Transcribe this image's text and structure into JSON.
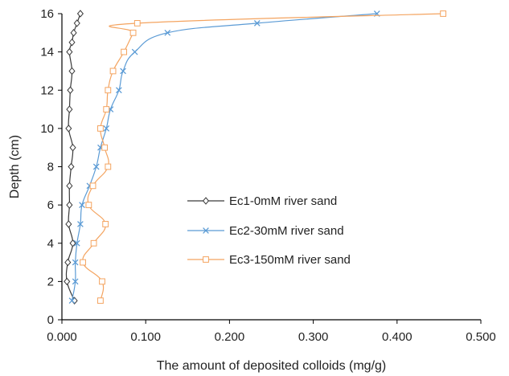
{
  "chart_data": {
    "type": "line",
    "title": "",
    "xlabel": "The amount of deposited colloids (mg/g)",
    "ylabel": "Depth (cm)",
    "xlim": [
      0,
      0.5
    ],
    "ylim": [
      0,
      16
    ],
    "x_ticks": [
      "0.000",
      "0.100",
      "0.200",
      "0.300",
      "0.400",
      "0.500"
    ],
    "y_ticks": [
      "0",
      "2",
      "4",
      "6",
      "8",
      "10",
      "12",
      "14",
      "16"
    ],
    "grid": false,
    "legend_position": "center",
    "series": [
      {
        "name": "Ec1-0mM river sand",
        "color": "#3a3a3a",
        "marker": "diamond",
        "points": [
          [
            0.015,
            1
          ],
          [
            0.006,
            2
          ],
          [
            0.007,
            3
          ],
          [
            0.013,
            4
          ],
          [
            0.008,
            5
          ],
          [
            0.009,
            6
          ],
          [
            0.009,
            7
          ],
          [
            0.011,
            8
          ],
          [
            0.013,
            9
          ],
          [
            0.008,
            10
          ],
          [
            0.009,
            11
          ],
          [
            0.01,
            12
          ],
          [
            0.012,
            13
          ],
          [
            0.009,
            14
          ],
          [
            0.012,
            14.5
          ],
          [
            0.014,
            15
          ],
          [
            0.018,
            15.5
          ],
          [
            0.022,
            16
          ]
        ]
      },
      {
        "name": "Ec2-30mM river sand",
        "color": "#5b9bd5",
        "marker": "x",
        "points": [
          [
            0.012,
            1
          ],
          [
            0.016,
            2
          ],
          [
            0.016,
            3
          ],
          [
            0.018,
            4
          ],
          [
            0.022,
            5
          ],
          [
            0.024,
            6
          ],
          [
            0.033,
            7
          ],
          [
            0.041,
            8
          ],
          [
            0.046,
            9
          ],
          [
            0.053,
            10
          ],
          [
            0.058,
            11
          ],
          [
            0.068,
            12
          ],
          [
            0.073,
            13
          ],
          [
            0.087,
            14
          ],
          [
            0.126,
            15
          ],
          [
            0.233,
            15.5
          ],
          [
            0.376,
            16
          ]
        ]
      },
      {
        "name": "Ec3-150mM river sand",
        "color": "#f4a460",
        "marker": "square",
        "points": [
          [
            0.046,
            1
          ],
          [
            0.048,
            2
          ],
          [
            0.025,
            3
          ],
          [
            0.038,
            4
          ],
          [
            0.052,
            5
          ],
          [
            0.032,
            6
          ],
          [
            0.037,
            7
          ],
          [
            0.055,
            8
          ],
          [
            0.051,
            9
          ],
          [
            0.046,
            10
          ],
          [
            0.053,
            11
          ],
          [
            0.055,
            12
          ],
          [
            0.061,
            13
          ],
          [
            0.074,
            14
          ],
          [
            0.085,
            15
          ],
          [
            0.09,
            15.5
          ],
          [
            0.455,
            16
          ]
        ]
      }
    ]
  }
}
